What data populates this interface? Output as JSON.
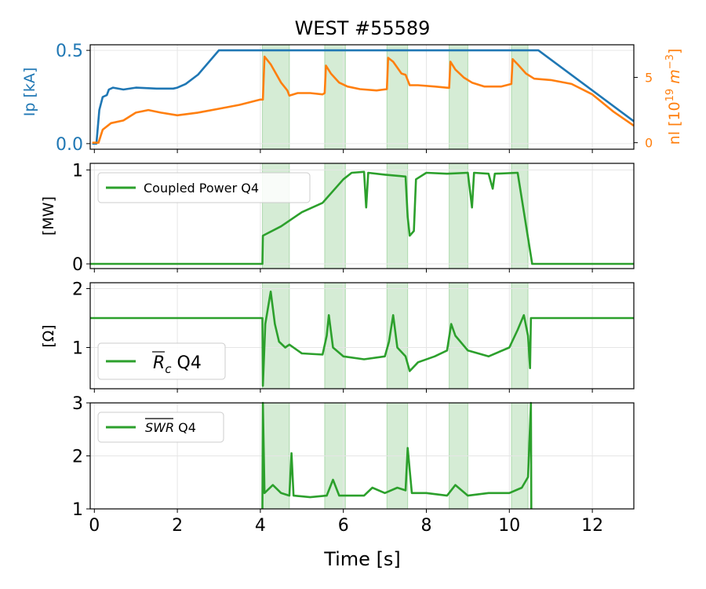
{
  "title": "WEST #55589",
  "x_axis": {
    "label": "Time [s]",
    "ticks": [
      0,
      2,
      4,
      6,
      8,
      10,
      12
    ],
    "range": [
      -0.1,
      13
    ]
  },
  "shaded_intervals": [
    [
      4.05,
      4.7
    ],
    [
      5.55,
      6.05
    ],
    [
      7.05,
      7.55
    ],
    [
      8.55,
      9.0
    ],
    [
      10.05,
      10.45
    ]
  ],
  "colors": {
    "ip": "#1f77b4",
    "nl": "#ff7f0e",
    "q4": "#2ca02c",
    "shade": "#2ca02c",
    "grid": "#e6e6e6"
  },
  "chart_data": [
    {
      "type": "line",
      "panel": "ip_nl",
      "y_left": {
        "label": "Ip [kA]",
        "ticks": [
          "0.0",
          "0.5"
        ],
        "ylim": [
          -0.03,
          0.53
        ]
      },
      "y_right": {
        "label_main": "nl [10",
        "label_sup_exp": "19",
        "label_unit": " m",
        "label_sup_unit": "−3",
        "label_end": "]",
        "ticks": [
          "0",
          "5"
        ],
        "ylim": [
          -0.5,
          7.5
        ]
      },
      "series": [
        {
          "key": "ip",
          "axis": "left",
          "points": [
            [
              -0.05,
              0.0
            ],
            [
              0.05,
              0.0
            ],
            [
              0.12,
              0.18
            ],
            [
              0.2,
              0.25
            ],
            [
              0.3,
              0.26
            ],
            [
              0.35,
              0.29
            ],
            [
              0.45,
              0.3
            ],
            [
              0.7,
              0.29
            ],
            [
              1.0,
              0.3
            ],
            [
              1.5,
              0.295
            ],
            [
              1.9,
              0.295
            ],
            [
              2.0,
              0.3
            ],
            [
              2.2,
              0.32
            ],
            [
              2.5,
              0.37
            ],
            [
              3.0,
              0.5
            ],
            [
              3.5,
              0.5
            ],
            [
              4.0,
              0.5
            ],
            [
              5.0,
              0.5
            ],
            [
              6.0,
              0.5
            ],
            [
              7.0,
              0.5
            ],
            [
              8.0,
              0.5
            ],
            [
              9.0,
              0.5
            ],
            [
              10.0,
              0.5
            ],
            [
              10.7,
              0.5
            ],
            [
              13.0,
              0.12
            ]
          ]
        },
        {
          "key": "nl",
          "axis": "right",
          "points": [
            [
              -0.05,
              0.0
            ],
            [
              0.1,
              0.0
            ],
            [
              0.2,
              1.0
            ],
            [
              0.4,
              1.5
            ],
            [
              0.7,
              1.7
            ],
            [
              1.0,
              2.3
            ],
            [
              1.3,
              2.5
            ],
            [
              1.6,
              2.3
            ],
            [
              2.0,
              2.1
            ],
            [
              2.5,
              2.3
            ],
            [
              3.0,
              2.6
            ],
            [
              3.5,
              2.9
            ],
            [
              4.0,
              3.3
            ],
            [
              4.06,
              3.3
            ],
            [
              4.1,
              6.6
            ],
            [
              4.25,
              6.0
            ],
            [
              4.5,
              4.6
            ],
            [
              4.65,
              4.0
            ],
            [
              4.7,
              3.6
            ],
            [
              4.9,
              3.8
            ],
            [
              5.2,
              3.8
            ],
            [
              5.5,
              3.7
            ],
            [
              5.55,
              3.8
            ],
            [
              5.58,
              5.9
            ],
            [
              5.7,
              5.3
            ],
            [
              5.9,
              4.6
            ],
            [
              6.1,
              4.3
            ],
            [
              6.4,
              4.1
            ],
            [
              6.8,
              4.0
            ],
            [
              7.05,
              4.1
            ],
            [
              7.08,
              6.5
            ],
            [
              7.2,
              6.2
            ],
            [
              7.4,
              5.3
            ],
            [
              7.5,
              5.2
            ],
            [
              7.6,
              4.4
            ],
            [
              7.8,
              4.4
            ],
            [
              8.2,
              4.3
            ],
            [
              8.55,
              4.2
            ],
            [
              8.58,
              6.2
            ],
            [
              8.7,
              5.6
            ],
            [
              8.9,
              5.0
            ],
            [
              9.1,
              4.6
            ],
            [
              9.4,
              4.3
            ],
            [
              9.8,
              4.3
            ],
            [
              10.05,
              4.5
            ],
            [
              10.08,
              6.4
            ],
            [
              10.2,
              6.0
            ],
            [
              10.4,
              5.3
            ],
            [
              10.6,
              4.9
            ],
            [
              11.0,
              4.8
            ],
            [
              11.5,
              4.5
            ],
            [
              12.0,
              3.7
            ],
            [
              12.5,
              2.4
            ],
            [
              13.0,
              1.3
            ]
          ]
        }
      ]
    },
    {
      "type": "line",
      "panel": "power",
      "y_label": "[MW]",
      "y_ticks": [
        "0",
        "1"
      ],
      "ylim": [
        -0.05,
        1.07
      ],
      "legend": {
        "label": "Coupled Power Q4",
        "placement": "upper-left"
      },
      "series": [
        {
          "key": "q4",
          "name": "Coupled Power Q4",
          "points": [
            [
              -0.1,
              0.0
            ],
            [
              4.05,
              0.0
            ],
            [
              4.06,
              0.3
            ],
            [
              4.5,
              0.4
            ],
            [
              5.0,
              0.55
            ],
            [
              5.5,
              0.65
            ],
            [
              6.0,
              0.9
            ],
            [
              6.2,
              0.97
            ],
            [
              6.5,
              0.98
            ],
            [
              6.55,
              0.6
            ],
            [
              6.6,
              0.97
            ],
            [
              7.0,
              0.95
            ],
            [
              7.5,
              0.93
            ],
            [
              7.55,
              0.5
            ],
            [
              7.6,
              0.3
            ],
            [
              7.7,
              0.35
            ],
            [
              7.75,
              0.9
            ],
            [
              8.0,
              0.97
            ],
            [
              8.5,
              0.96
            ],
            [
              9.0,
              0.97
            ],
            [
              9.1,
              0.6
            ],
            [
              9.15,
              0.97
            ],
            [
              9.5,
              0.96
            ],
            [
              9.6,
              0.8
            ],
            [
              9.65,
              0.96
            ],
            [
              10.2,
              0.97
            ],
            [
              10.55,
              0.0
            ],
            [
              13.0,
              0.0
            ]
          ]
        }
      ]
    },
    {
      "type": "line",
      "panel": "rc",
      "y_label": "[Ω]",
      "y_ticks": [
        "1",
        "2"
      ],
      "ylim": [
        0.3,
        2.1
      ],
      "legend": {
        "label_base": "R",
        "label_sub": "c",
        "label_rest": " Q4",
        "placement": "lower-left"
      },
      "series": [
        {
          "key": "q4",
          "name": "R_c Q4",
          "points": [
            [
              -0.1,
              1.5
            ],
            [
              4.05,
              1.5
            ],
            [
              4.06,
              0.35
            ],
            [
              4.12,
              1.4
            ],
            [
              4.25,
              1.95
            ],
            [
              4.35,
              1.4
            ],
            [
              4.45,
              1.1
            ],
            [
              4.6,
              1.0
            ],
            [
              4.7,
              1.05
            ],
            [
              5.0,
              0.9
            ],
            [
              5.5,
              0.88
            ],
            [
              5.6,
              1.2
            ],
            [
              5.65,
              1.55
            ],
            [
              5.75,
              1.0
            ],
            [
              6.0,
              0.85
            ],
            [
              6.5,
              0.8
            ],
            [
              7.0,
              0.85
            ],
            [
              7.1,
              1.1
            ],
            [
              7.2,
              1.55
            ],
            [
              7.3,
              1.0
            ],
            [
              7.5,
              0.85
            ],
            [
              7.6,
              0.6
            ],
            [
              7.8,
              0.75
            ],
            [
              8.2,
              0.85
            ],
            [
              8.5,
              0.95
            ],
            [
              8.6,
              1.4
            ],
            [
              8.7,
              1.2
            ],
            [
              9.0,
              0.95
            ],
            [
              9.5,
              0.85
            ],
            [
              10.0,
              1.0
            ],
            [
              10.2,
              1.3
            ],
            [
              10.35,
              1.55
            ],
            [
              10.45,
              1.2
            ],
            [
              10.5,
              0.65
            ],
            [
              10.52,
              1.5
            ],
            [
              13.0,
              1.5
            ]
          ]
        }
      ]
    },
    {
      "type": "line",
      "panel": "swr",
      "y_ticks": [
        "1",
        "2",
        "3"
      ],
      "ylim": [
        1.0,
        3.0
      ],
      "legend": {
        "label_base": "SWR",
        "label_rest": " Q4",
        "placement": "upper-left"
      },
      "series": [
        {
          "key": "q4",
          "name": "SWR Q4",
          "points": [
            [
              4.05,
              1.0
            ],
            [
              4.06,
              3.0
            ],
            [
              4.1,
              1.3
            ],
            [
              4.3,
              1.45
            ],
            [
              4.5,
              1.3
            ],
            [
              4.7,
              1.25
            ],
            [
              4.75,
              2.05
            ],
            [
              4.8,
              1.25
            ],
            [
              5.2,
              1.22
            ],
            [
              5.6,
              1.25
            ],
            [
              5.75,
              1.55
            ],
            [
              5.9,
              1.25
            ],
            [
              6.5,
              1.25
            ],
            [
              6.7,
              1.4
            ],
            [
              7.0,
              1.3
            ],
            [
              7.3,
              1.4
            ],
            [
              7.5,
              1.35
            ],
            [
              7.55,
              2.15
            ],
            [
              7.65,
              1.3
            ],
            [
              8.0,
              1.3
            ],
            [
              8.5,
              1.25
            ],
            [
              8.7,
              1.45
            ],
            [
              9.0,
              1.25
            ],
            [
              9.5,
              1.3
            ],
            [
              10.0,
              1.3
            ],
            [
              10.3,
              1.4
            ],
            [
              10.45,
              1.6
            ],
            [
              10.52,
              3.0
            ],
            [
              10.53,
              1.0
            ]
          ]
        }
      ]
    }
  ]
}
